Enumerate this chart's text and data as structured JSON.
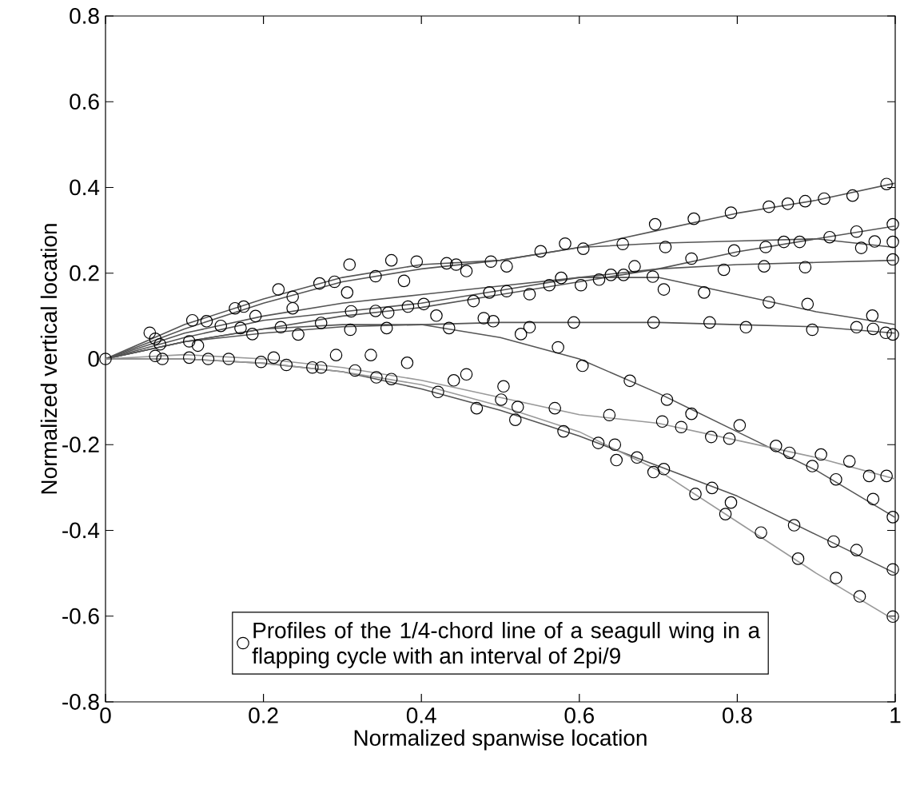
{
  "chart_data": {
    "type": "scatter",
    "xlabel": "Normalized spanwise location",
    "ylabel": "Normalized vertical location",
    "xlim": [
      0,
      1
    ],
    "ylim": [
      -0.8,
      0.8
    ],
    "xticks": [
      0,
      0.2,
      0.4,
      0.6,
      0.8,
      1
    ],
    "yticks": [
      -0.8,
      -0.6,
      -0.4,
      -0.2,
      0,
      0.2,
      0.4,
      0.6,
      0.8
    ],
    "legend": "bottom",
    "series": [
      {
        "name": "Profiles of the 1/4-chord line of a seagull wing in a flapping cycle with an interval of 2pi/9",
        "marker": "circle",
        "color": "#000000",
        "x": [
          0,
          0.056,
          0.063,
          0.069,
          0.063,
          0.072,
          0.11,
          0.128,
          0.146,
          0.106,
          0.117,
          0.106,
          0.13,
          0.156,
          0.164,
          0.175,
          0.19,
          0.171,
          0.186,
          0.197,
          0.213,
          0.219,
          0.237,
          0.237,
          0.222,
          0.244,
          0.229,
          0.262,
          0.273,
          0.271,
          0.29,
          0.306,
          0.309,
          0.273,
          0.311,
          0.31,
          0.292,
          0.316,
          0.342,
          0.362,
          0.378,
          0.394,
          0.342,
          0.358,
          0.383,
          0.403,
          0.356,
          0.419,
          0.336,
          0.382,
          0.343,
          0.362,
          0.421,
          0.441,
          0.457,
          0.435,
          0.432,
          0.444,
          0.457,
          0.466,
          0.486,
          0.488,
          0.508,
          0.508,
          0.479,
          0.491,
          0.504,
          0.501,
          0.522,
          0.519,
          0.47,
          0.526,
          0.537,
          0.537,
          0.551,
          0.562,
          0.577,
          0.582,
          0.573,
          0.569,
          0.58,
          0.604,
          0.602,
          0.605,
          0.593,
          0.625,
          0.64,
          0.656,
          0.67,
          0.655,
          0.693,
          0.707,
          0.696,
          0.709,
          0.694,
          0.664,
          0.638,
          0.624,
          0.645,
          0.647,
          0.673,
          0.694,
          0.707,
          0.711,
          0.705,
          0.729,
          0.742,
          0.745,
          0.742,
          0.758,
          0.765,
          0.767,
          0.747,
          0.768,
          0.783,
          0.796,
          0.792,
          0.811,
          0.803,
          0.79,
          0.792,
          0.785,
          0.83,
          0.84,
          0.836,
          0.834,
          0.84,
          0.849,
          0.866,
          0.859,
          0.864,
          0.879,
          0.886,
          0.886,
          0.889,
          0.895,
          0.895,
          0.906,
          0.872,
          0.877,
          0.91,
          0.917,
          0.925,
          0.922,
          0.925,
          0.946,
          0.951,
          0.957,
          0.942,
          0.951,
          0.955,
          0.971,
          0.972,
          0.967,
          0.951,
          0.974,
          0.972,
          0.989,
          0.989,
          0.988,
          0.997,
          0.997,
          0.997,
          0.997,
          0.997,
          0.997,
          0.997
        ],
        "values": [
          0,
          0.061,
          0.047,
          0.034,
          0.007,
          0,
          0.09,
          0.088,
          0.077,
          0.041,
          0.031,
          0.003,
          0,
          0,
          0.118,
          0.122,
          0.1,
          0.072,
          0.058,
          -0.007,
          0.003,
          0.162,
          0.145,
          0.118,
          0.074,
          0.057,
          -0.014,
          -0.02,
          -0.02,
          0.176,
          0.18,
          0.155,
          0.22,
          0.084,
          0.111,
          0.068,
          0.009,
          -0.027,
          0.193,
          0.23,
          0.182,
          0.227,
          0.112,
          0.108,
          0.122,
          0.128,
          0.072,
          0.101,
          0.009,
          -0.009,
          -0.043,
          -0.047,
          -0.077,
          -0.05,
          -0.036,
          0.072,
          0.223,
          0.22,
          0.205,
          0.135,
          0.155,
          0.227,
          0.216,
          0.158,
          0.095,
          0.088,
          -0.064,
          -0.095,
          -0.112,
          -0.142,
          -0.115,
          0.058,
          0.074,
          0.151,
          0.251,
          0.172,
          0.189,
          0.269,
          0.027,
          -0.115,
          -0.169,
          -0.016,
          0.172,
          0.257,
          0.085,
          0.185,
          0.196,
          0.196,
          0.216,
          0.268,
          0.192,
          0.162,
          0.314,
          0.261,
          0.085,
          -0.051,
          -0.131,
          -0.196,
          -0.2,
          -0.236,
          -0.23,
          -0.264,
          -0.257,
          -0.095,
          -0.146,
          -0.159,
          -0.128,
          0.327,
          0.234,
          0.155,
          0.085,
          -0.182,
          -0.315,
          -0.301,
          0.208,
          0.253,
          0.341,
          0.074,
          -0.155,
          -0.186,
          -0.335,
          -0.362,
          -0.405,
          0.355,
          0.261,
          0.216,
          0.132,
          -0.203,
          -0.219,
          0.273,
          0.362,
          0.273,
          0.368,
          0.214,
          0.128,
          0.068,
          -0.25,
          -0.223,
          -0.388,
          -0.466,
          0.374,
          0.284,
          -0.281,
          -0.426,
          -0.511,
          0.381,
          0.297,
          0.259,
          -0.239,
          -0.446,
          -0.554,
          0.101,
          -0.327,
          -0.273,
          0.074,
          0.274,
          0.07,
          0.408,
          -0.273,
          0.061,
          0.314,
          0.273,
          0.232,
          0.057,
          -0.369,
          -0.491,
          -0.601
        ]
      },
      {
        "type": "line",
        "color": "#555555",
        "x": [
          0,
          0.1,
          0.2,
          0.3,
          0.4,
          0.5,
          0.6,
          0.7,
          0.8,
          0.9,
          1
        ],
        "values": [
          0,
          0.07,
          0.13,
          0.18,
          0.21,
          0.23,
          0.26,
          0.3,
          0.34,
          0.37,
          0.41
        ]
      },
      {
        "type": "line",
        "color": "#555555",
        "x": [
          0,
          0.1,
          0.2,
          0.3,
          0.4,
          0.5,
          0.6,
          0.7,
          0.8,
          0.9,
          1
        ],
        "values": [
          0,
          0.08,
          0.14,
          0.19,
          0.22,
          0.23,
          0.26,
          0.27,
          0.275,
          0.28,
          0.26
        ]
      },
      {
        "type": "line",
        "color": "#555555",
        "x": [
          0,
          0.1,
          0.2,
          0.3,
          0.4,
          0.5,
          0.6,
          0.7,
          0.8,
          0.9,
          1
        ],
        "values": [
          0,
          0.04,
          0.07,
          0.1,
          0.12,
          0.15,
          0.18,
          0.21,
          0.25,
          0.28,
          0.31
        ]
      },
      {
        "type": "line",
        "color": "#555555",
        "x": [
          0,
          0.1,
          0.2,
          0.3,
          0.4,
          0.5,
          0.6,
          0.7,
          0.8,
          0.9,
          1
        ],
        "values": [
          0,
          0.05,
          0.09,
          0.11,
          0.13,
          0.16,
          0.19,
          0.21,
          0.22,
          0.225,
          0.23
        ]
      },
      {
        "type": "line",
        "color": "#555555",
        "x": [
          0,
          0.1,
          0.2,
          0.3,
          0.4,
          0.5,
          0.6,
          0.7,
          0.8,
          0.9,
          1
        ],
        "values": [
          0,
          0.06,
          0.1,
          0.13,
          0.15,
          0.17,
          0.19,
          0.19,
          0.15,
          0.11,
          0.08
        ]
      },
      {
        "type": "line",
        "color": "#555555",
        "x": [
          0,
          0.1,
          0.2,
          0.3,
          0.4,
          0.5,
          0.6,
          0.7,
          0.8,
          0.9,
          1
        ],
        "values": [
          0,
          0.04,
          0.06,
          0.075,
          0.08,
          0.085,
          0.085,
          0.085,
          0.08,
          0.075,
          0.06
        ]
      },
      {
        "type": "line",
        "color": "#555555",
        "x": [
          0,
          0.1,
          0.2,
          0.3,
          0.4,
          0.5,
          0.6,
          0.7,
          0.8,
          0.9,
          1
        ],
        "values": [
          0,
          0.04,
          0.07,
          0.08,
          0.08,
          0.05,
          0,
          -0.08,
          -0.17,
          -0.26,
          -0.37
        ]
      },
      {
        "type": "line",
        "color": "#999999",
        "x": [
          0,
          0.1,
          0.2,
          0.3,
          0.4,
          0.5,
          0.6,
          0.7,
          0.8,
          0.9,
          1
        ],
        "values": [
          0,
          0.01,
          0,
          -0.02,
          -0.05,
          -0.09,
          -0.13,
          -0.15,
          -0.19,
          -0.23,
          -0.28
        ]
      },
      {
        "type": "line",
        "color": "#555555",
        "x": [
          0,
          0.1,
          0.2,
          0.3,
          0.4,
          0.5,
          0.6,
          0.7,
          0.8,
          0.9,
          1
        ],
        "values": [
          0,
          0,
          -0.01,
          -0.03,
          -0.07,
          -0.12,
          -0.18,
          -0.25,
          -0.32,
          -0.41,
          -0.5
        ]
      },
      {
        "type": "line",
        "color": "#999999",
        "x": [
          0,
          0.1,
          0.2,
          0.3,
          0.4,
          0.5,
          0.6,
          0.7,
          0.8,
          0.9,
          1
        ],
        "values": [
          0,
          0,
          -0.01,
          -0.03,
          -0.06,
          -0.11,
          -0.17,
          -0.26,
          -0.38,
          -0.5,
          -0.61
        ]
      }
    ]
  }
}
